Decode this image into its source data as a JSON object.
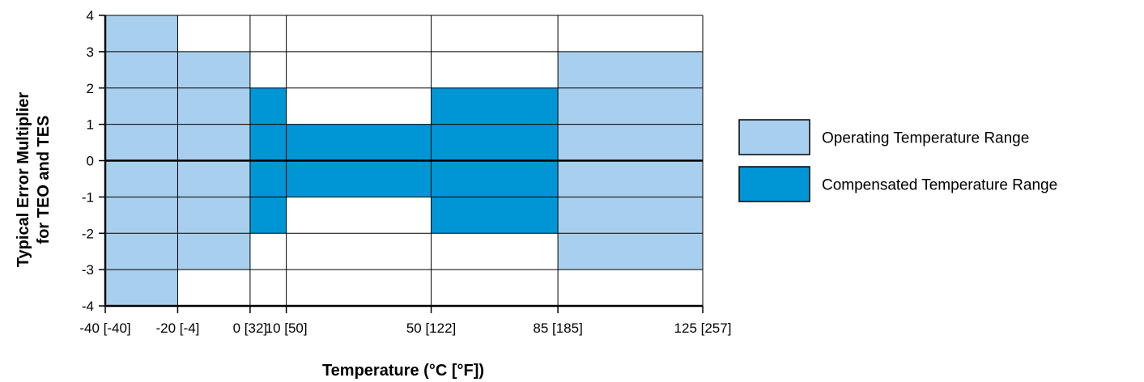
{
  "chart_data": {
    "type": "heatmap",
    "title": "",
    "xlabel": "Temperature (°C [°F])",
    "ylabel": [
      "Typical Error Multiplier",
      "for TEO and TES"
    ],
    "x_ticks": [
      {
        "c": -40,
        "label": "-40 [-40]"
      },
      {
        "c": -20,
        "label": "-20 [-4]"
      },
      {
        "c": 0,
        "label": "0 [32]"
      },
      {
        "c": 10,
        "label": "10 [50]"
      },
      {
        "c": 50,
        "label": "50 [122]"
      },
      {
        "c": 85,
        "label": "85 [185]"
      },
      {
        "c": 125,
        "label": "125 [257]"
      }
    ],
    "xlim": [
      -40,
      125
    ],
    "ylim": [
      -4,
      4
    ],
    "y_ticks": [
      4,
      3,
      2,
      1,
      0,
      -1,
      -2,
      -3,
      -4
    ],
    "grid": true,
    "legend_position": "right",
    "series": [
      {
        "name": "Operating Temperature Range",
        "color": "#a9cfee",
        "segments": [
          {
            "x_start": -40,
            "x_end": -20,
            "multiplier": 4
          },
          {
            "x_start": -20,
            "x_end": 0,
            "multiplier": 3
          },
          {
            "x_start": 85,
            "x_end": 125,
            "multiplier": 3
          }
        ]
      },
      {
        "name": "Compensated Temperature Range",
        "color": "#0096d6",
        "segments": [
          {
            "x_start": 0,
            "x_end": 10,
            "multiplier": 2
          },
          {
            "x_start": 10,
            "x_end": 50,
            "multiplier": 1
          },
          {
            "x_start": 50,
            "x_end": 85,
            "multiplier": 2
          }
        ]
      }
    ]
  }
}
